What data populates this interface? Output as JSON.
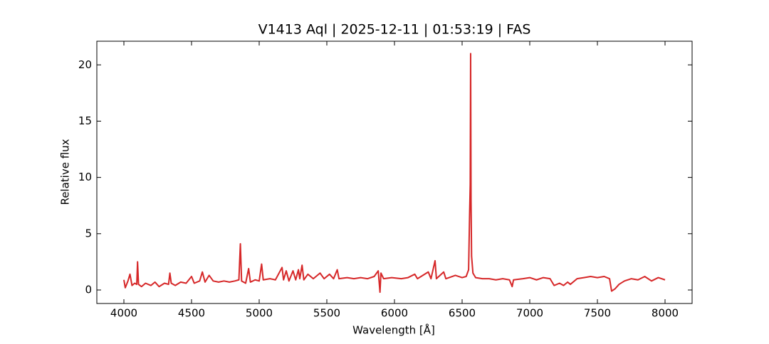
{
  "chart_data": {
    "type": "line",
    "title": "V1413 Aql | 2025-12-11 | 01:53:19 | FAS",
    "xlabel": "Wavelength [Å]",
    "ylabel": "Relative flux",
    "xlim": [
      3800,
      8200
    ],
    "ylim": [
      -1.2,
      22.1
    ],
    "xticks": [
      4000,
      4500,
      5000,
      5500,
      6000,
      6500,
      7000,
      7500,
      8000
    ],
    "yticks": [
      0,
      5,
      10,
      15,
      20
    ],
    "grid": false,
    "series": [
      {
        "color": "#d62728",
        "x": [
          4000,
          4010,
          4030,
          4045,
          4060,
          4080,
          4095,
          4101,
          4108,
          4130,
          4160,
          4200,
          4230,
          4260,
          4300,
          4330,
          4340,
          4350,
          4380,
          4420,
          4460,
          4500,
          4520,
          4560,
          4580,
          4600,
          4630,
          4660,
          4700,
          4740,
          4780,
          4820,
          4850,
          4861,
          4870,
          4900,
          4922,
          4935,
          4970,
          5000,
          5018,
          5030,
          5080,
          5120,
          5169,
          5180,
          5200,
          5220,
          5250,
          5270,
          5290,
          5300,
          5317,
          5330,
          5360,
          5400,
          5450,
          5480,
          5520,
          5550,
          5577,
          5590,
          5650,
          5700,
          5750,
          5800,
          5850,
          5880,
          5893,
          5900,
          5920,
          5980,
          6050,
          6100,
          6150,
          6170,
          6250,
          6270,
          6300,
          6310,
          6364,
          6380,
          6450,
          6500,
          6530,
          6548,
          6555,
          6560,
          6563,
          6566,
          6570,
          6580,
          6600,
          6650,
          6700,
          6750,
          6800,
          6850,
          6870,
          6880,
          6950,
          7000,
          7050,
          7100,
          7150,
          7180,
          7220,
          7250,
          7280,
          7300,
          7350,
          7400,
          7450,
          7500,
          7550,
          7590,
          7605,
          7630,
          7660,
          7700,
          7750,
          7800,
          7850,
          7900,
          7950,
          8000
        ],
        "values": [
          0.9,
          0.2,
          0.8,
          1.4,
          0.4,
          0.6,
          0.5,
          2.5,
          0.5,
          0.3,
          0.6,
          0.4,
          0.7,
          0.3,
          0.6,
          0.5,
          1.5,
          0.6,
          0.4,
          0.7,
          0.6,
          1.2,
          0.6,
          0.8,
          1.6,
          0.7,
          1.3,
          0.8,
          0.7,
          0.8,
          0.7,
          0.8,
          0.9,
          4.1,
          0.8,
          0.6,
          1.9,
          0.7,
          0.9,
          0.8,
          2.3,
          0.9,
          1.0,
          0.9,
          2.0,
          0.9,
          1.7,
          0.8,
          1.7,
          0.9,
          1.8,
          1.0,
          2.2,
          0.9,
          1.4,
          1.0,
          1.5,
          1.0,
          1.4,
          1.0,
          1.8,
          1.0,
          1.1,
          1.0,
          1.1,
          1.0,
          1.2,
          1.7,
          -0.2,
          1.5,
          1.0,
          1.1,
          1.0,
          1.1,
          1.4,
          1.0,
          1.6,
          1.0,
          2.6,
          1.0,
          1.6,
          1.0,
          1.3,
          1.1,
          1.2,
          1.8,
          6.5,
          9.4,
          21.0,
          8.0,
          3.0,
          1.5,
          1.1,
          1.0,
          1.0,
          0.9,
          1.0,
          0.9,
          0.3,
          0.9,
          1.0,
          1.1,
          0.9,
          1.1,
          1.0,
          0.4,
          0.6,
          0.4,
          0.7,
          0.5,
          1.0,
          1.1,
          1.2,
          1.1,
          1.2,
          1.0,
          -0.1,
          0.1,
          0.5,
          0.8,
          1.0,
          0.9,
          1.2,
          0.8,
          1.1,
          0.9
        ]
      }
    ]
  }
}
